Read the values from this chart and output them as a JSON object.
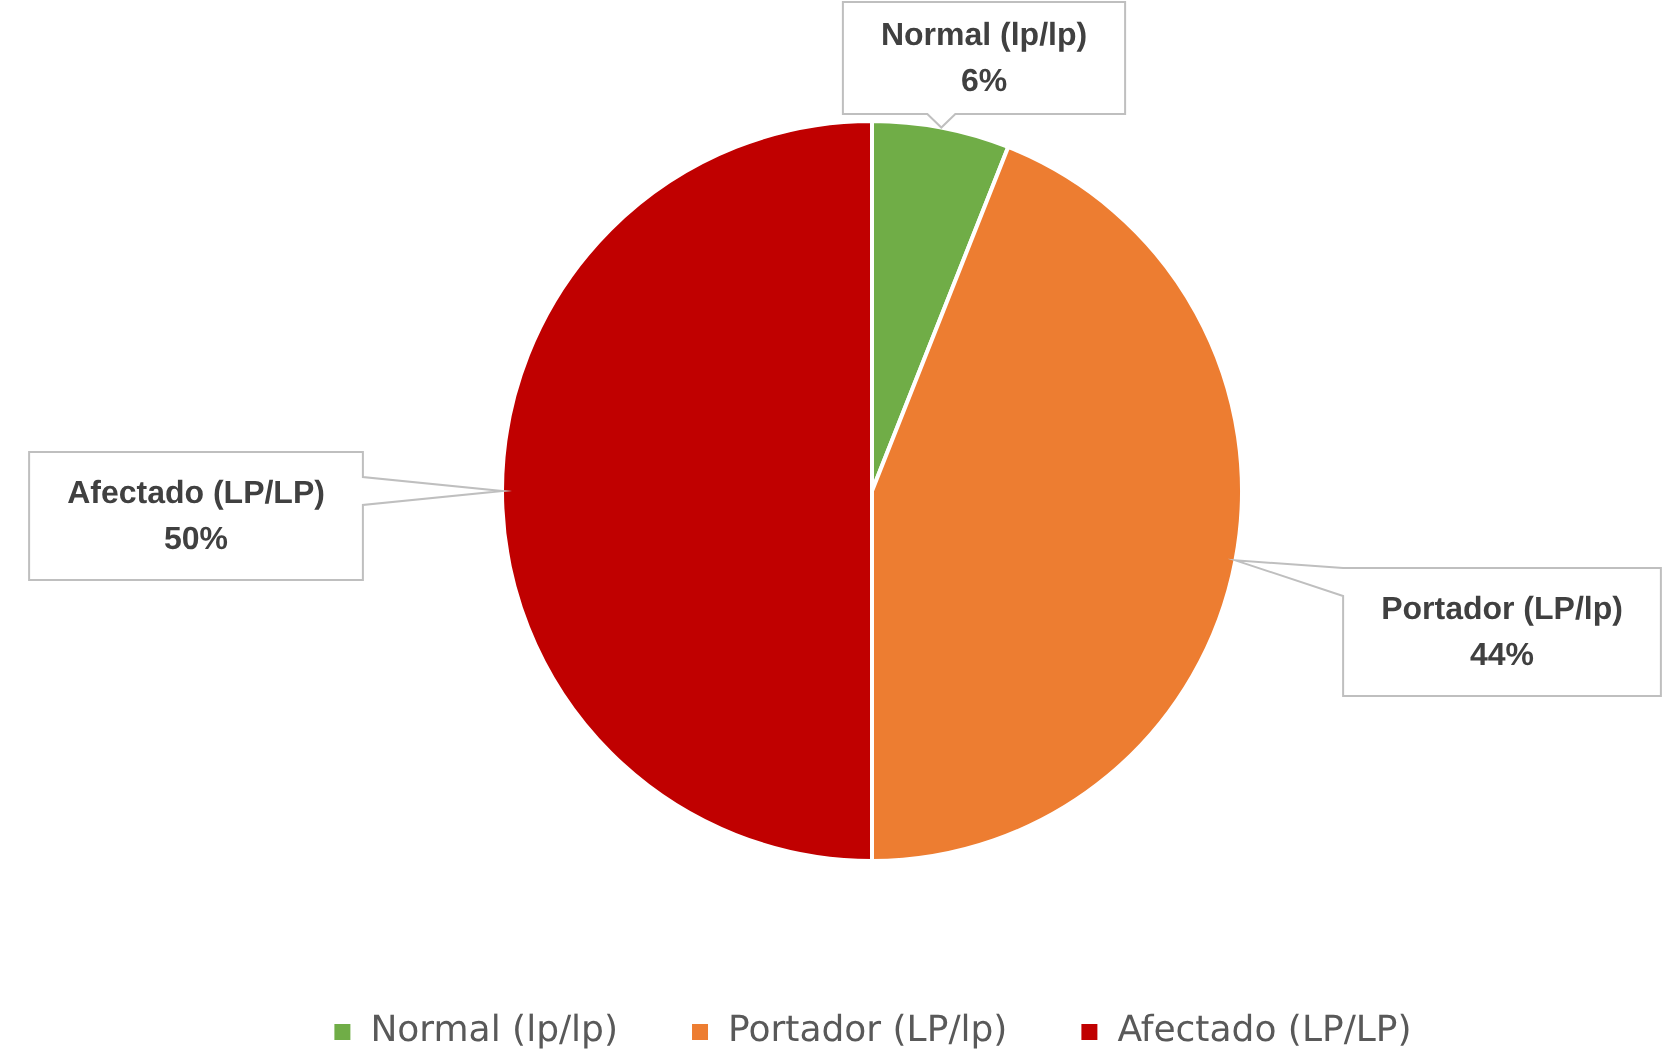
{
  "chart_data": {
    "type": "pie",
    "categories": [
      "Normal (lp/lp)",
      "Portador (LP/lp)",
      "Afectado (LP/LP)"
    ],
    "values": [
      6,
      44,
      50
    ],
    "colors": [
      "#70ad47",
      "#ed7d31",
      "#c00000"
    ],
    "value_labels": [
      "6%",
      "44%",
      "50%"
    ],
    "legend": "bottom"
  }
}
